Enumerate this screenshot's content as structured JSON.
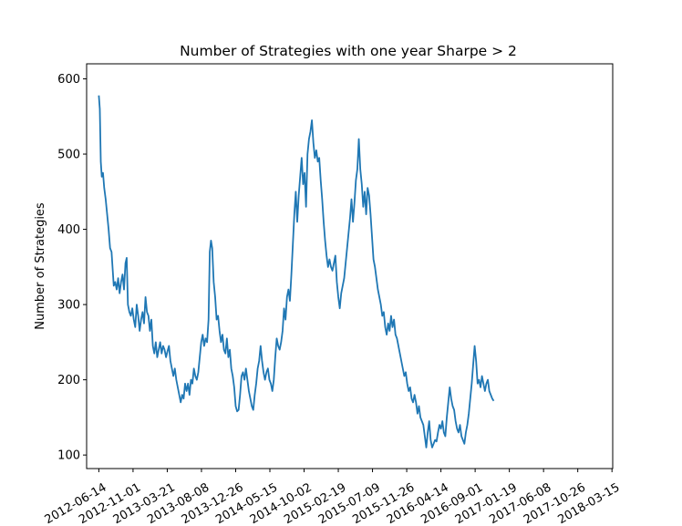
{
  "chart_data": {
    "type": "line",
    "title": "Number of Strategies with one year Sharpe > 2",
    "xlabel": "",
    "ylabel": "Number of Strategies",
    "x_ticks": [
      "2012-06-14",
      "2012-11-01",
      "2013-03-21",
      "2013-08-08",
      "2013-12-26",
      "2014-05-15",
      "2014-10-02",
      "2015-02-19",
      "2015-07-09",
      "2015-11-26",
      "2016-04-14",
      "2016-09-01",
      "2017-01-19",
      "2017-06-08",
      "2017-10-26",
      "2018-03-15"
    ],
    "y_ticks": [
      100,
      200,
      300,
      400,
      500,
      600
    ],
    "ylim": [
      82,
      620
    ],
    "xlim": [
      "2012-04-25",
      "2018-03-18"
    ],
    "grid": false,
    "line_color": "#1f77b4",
    "series": [
      {
        "points": [
          [
            "2012-06-14",
            578
          ],
          [
            "2012-06-18",
            560
          ],
          [
            "2012-06-22",
            490
          ],
          [
            "2012-06-26",
            470
          ],
          [
            "2012-07-01",
            475
          ],
          [
            "2012-07-06",
            455
          ],
          [
            "2012-07-12",
            440
          ],
          [
            "2012-07-18",
            420
          ],
          [
            "2012-07-24",
            400
          ],
          [
            "2012-07-30",
            375
          ],
          [
            "2012-08-05",
            370
          ],
          [
            "2012-08-10",
            345
          ],
          [
            "2012-08-14",
            325
          ],
          [
            "2012-08-20",
            330
          ],
          [
            "2012-08-26",
            320
          ],
          [
            "2012-09-01",
            335
          ],
          [
            "2012-09-07",
            315
          ],
          [
            "2012-09-13",
            330
          ],
          [
            "2012-09-19",
            340
          ],
          [
            "2012-09-25",
            320
          ],
          [
            "2012-10-01",
            355
          ],
          [
            "2012-10-06",
            362
          ],
          [
            "2012-10-11",
            300
          ],
          [
            "2012-10-17",
            290
          ],
          [
            "2012-10-23",
            285
          ],
          [
            "2012-10-29",
            295
          ],
          [
            "2012-11-04",
            280
          ],
          [
            "2012-11-10",
            270
          ],
          [
            "2012-11-16",
            300
          ],
          [
            "2012-11-22",
            285
          ],
          [
            "2012-11-28",
            265
          ],
          [
            "2012-12-04",
            280
          ],
          [
            "2012-12-10",
            290
          ],
          [
            "2012-12-16",
            275
          ],
          [
            "2012-12-22",
            310
          ],
          [
            "2012-12-28",
            290
          ],
          [
            "2013-01-03",
            285
          ],
          [
            "2013-01-09",
            265
          ],
          [
            "2013-01-15",
            280
          ],
          [
            "2013-01-21",
            245
          ],
          [
            "2013-01-27",
            235
          ],
          [
            "2013-02-02",
            250
          ],
          [
            "2013-02-08",
            230
          ],
          [
            "2013-02-14",
            240
          ],
          [
            "2013-02-20",
            250
          ],
          [
            "2013-02-26",
            235
          ],
          [
            "2013-03-04",
            245
          ],
          [
            "2013-03-10",
            240
          ],
          [
            "2013-03-16",
            230
          ],
          [
            "2013-03-22",
            238
          ],
          [
            "2013-03-28",
            245
          ],
          [
            "2013-04-03",
            225
          ],
          [
            "2013-04-09",
            215
          ],
          [
            "2013-04-15",
            205
          ],
          [
            "2013-04-21",
            215
          ],
          [
            "2013-04-27",
            200
          ],
          [
            "2013-05-03",
            190
          ],
          [
            "2013-05-09",
            180
          ],
          [
            "2013-05-15",
            170
          ],
          [
            "2013-05-21",
            180
          ],
          [
            "2013-05-27",
            175
          ],
          [
            "2013-06-02",
            195
          ],
          [
            "2013-06-08",
            185
          ],
          [
            "2013-06-14",
            195
          ],
          [
            "2013-06-20",
            180
          ],
          [
            "2013-06-26",
            200
          ],
          [
            "2013-07-02",
            195
          ],
          [
            "2013-07-08",
            215
          ],
          [
            "2013-07-14",
            205
          ],
          [
            "2013-07-20",
            200
          ],
          [
            "2013-07-26",
            210
          ],
          [
            "2013-08-01",
            230
          ],
          [
            "2013-08-07",
            250
          ],
          [
            "2013-08-13",
            260
          ],
          [
            "2013-08-19",
            245
          ],
          [
            "2013-08-25",
            255
          ],
          [
            "2013-08-31",
            250
          ],
          [
            "2013-09-06",
            280
          ],
          [
            "2013-09-11",
            370
          ],
          [
            "2013-09-16",
            385
          ],
          [
            "2013-09-21",
            375
          ],
          [
            "2013-09-27",
            330
          ],
          [
            "2013-10-03",
            310
          ],
          [
            "2013-10-09",
            280
          ],
          [
            "2013-10-15",
            285
          ],
          [
            "2013-10-21",
            265
          ],
          [
            "2013-10-27",
            250
          ],
          [
            "2013-11-02",
            260
          ],
          [
            "2013-11-08",
            240
          ],
          [
            "2013-11-14",
            235
          ],
          [
            "2013-11-20",
            255
          ],
          [
            "2013-11-26",
            230
          ],
          [
            "2013-12-02",
            240
          ],
          [
            "2013-12-08",
            215
          ],
          [
            "2013-12-14",
            205
          ],
          [
            "2013-12-20",
            190
          ],
          [
            "2013-12-26",
            165
          ],
          [
            "2014-01-01",
            158
          ],
          [
            "2014-01-07",
            160
          ],
          [
            "2014-01-13",
            180
          ],
          [
            "2014-01-19",
            205
          ],
          [
            "2014-01-25",
            210
          ],
          [
            "2014-01-31",
            200
          ],
          [
            "2014-02-06",
            215
          ],
          [
            "2014-02-12",
            200
          ],
          [
            "2014-02-18",
            185
          ],
          [
            "2014-02-24",
            175
          ],
          [
            "2014-03-02",
            165
          ],
          [
            "2014-03-08",
            160
          ],
          [
            "2014-03-14",
            180
          ],
          [
            "2014-03-20",
            195
          ],
          [
            "2014-03-26",
            215
          ],
          [
            "2014-04-01",
            225
          ],
          [
            "2014-04-07",
            245
          ],
          [
            "2014-04-13",
            225
          ],
          [
            "2014-04-19",
            210
          ],
          [
            "2014-04-25",
            200
          ],
          [
            "2014-05-01",
            210
          ],
          [
            "2014-05-07",
            215
          ],
          [
            "2014-05-13",
            200
          ],
          [
            "2014-05-19",
            195
          ],
          [
            "2014-05-25",
            185
          ],
          [
            "2014-05-31",
            200
          ],
          [
            "2014-06-06",
            230
          ],
          [
            "2014-06-12",
            255
          ],
          [
            "2014-06-18",
            245
          ],
          [
            "2014-06-24",
            240
          ],
          [
            "2014-06-30",
            250
          ],
          [
            "2014-07-06",
            265
          ],
          [
            "2014-07-12",
            295
          ],
          [
            "2014-07-18",
            280
          ],
          [
            "2014-07-24",
            310
          ],
          [
            "2014-07-30",
            320
          ],
          [
            "2014-08-05",
            305
          ],
          [
            "2014-08-11",
            340
          ],
          [
            "2014-08-17",
            380
          ],
          [
            "2014-08-23",
            420
          ],
          [
            "2014-08-29",
            450
          ],
          [
            "2014-09-04",
            410
          ],
          [
            "2014-09-10",
            445
          ],
          [
            "2014-09-16",
            470
          ],
          [
            "2014-09-22",
            495
          ],
          [
            "2014-09-28",
            460
          ],
          [
            "2014-10-04",
            475
          ],
          [
            "2014-10-10",
            430
          ],
          [
            "2014-10-16",
            500
          ],
          [
            "2014-10-22",
            520
          ],
          [
            "2014-10-28",
            530
          ],
          [
            "2014-11-03",
            545
          ],
          [
            "2014-11-09",
            515
          ],
          [
            "2014-11-15",
            495
          ],
          [
            "2014-11-21",
            505
          ],
          [
            "2014-11-27",
            490
          ],
          [
            "2014-12-03",
            495
          ],
          [
            "2014-12-09",
            465
          ],
          [
            "2014-12-15",
            440
          ],
          [
            "2014-12-21",
            410
          ],
          [
            "2014-12-27",
            385
          ],
          [
            "2015-01-02",
            365
          ],
          [
            "2015-01-08",
            350
          ],
          [
            "2015-01-14",
            360
          ],
          [
            "2015-01-20",
            350
          ],
          [
            "2015-01-26",
            345
          ],
          [
            "2015-02-01",
            355
          ],
          [
            "2015-02-07",
            365
          ],
          [
            "2015-02-13",
            330
          ],
          [
            "2015-02-19",
            310
          ],
          [
            "2015-02-25",
            295
          ],
          [
            "2015-03-03",
            315
          ],
          [
            "2015-03-09",
            325
          ],
          [
            "2015-03-15",
            335
          ],
          [
            "2015-03-21",
            355
          ],
          [
            "2015-03-27",
            375
          ],
          [
            "2015-04-02",
            395
          ],
          [
            "2015-04-08",
            415
          ],
          [
            "2015-04-14",
            440
          ],
          [
            "2015-04-20",
            410
          ],
          [
            "2015-04-26",
            435
          ],
          [
            "2015-05-02",
            465
          ],
          [
            "2015-05-08",
            480
          ],
          [
            "2015-05-14",
            520
          ],
          [
            "2015-05-20",
            480
          ],
          [
            "2015-05-26",
            460
          ],
          [
            "2015-06-01",
            430
          ],
          [
            "2015-06-07",
            450
          ],
          [
            "2015-06-13",
            420
          ],
          [
            "2015-06-19",
            455
          ],
          [
            "2015-06-25",
            445
          ],
          [
            "2015-07-01",
            420
          ],
          [
            "2015-07-07",
            390
          ],
          [
            "2015-07-13",
            360
          ],
          [
            "2015-07-19",
            350
          ],
          [
            "2015-07-25",
            335
          ],
          [
            "2015-07-31",
            320
          ],
          [
            "2015-08-06",
            310
          ],
          [
            "2015-08-12",
            300
          ],
          [
            "2015-08-18",
            285
          ],
          [
            "2015-08-24",
            290
          ],
          [
            "2015-08-30",
            270
          ],
          [
            "2015-09-05",
            260
          ],
          [
            "2015-09-11",
            275
          ],
          [
            "2015-09-17",
            265
          ],
          [
            "2015-09-23",
            285
          ],
          [
            "2015-09-29",
            270
          ],
          [
            "2015-10-05",
            280
          ],
          [
            "2015-10-11",
            260
          ],
          [
            "2015-10-17",
            255
          ],
          [
            "2015-10-23",
            245
          ],
          [
            "2015-10-29",
            235
          ],
          [
            "2015-11-04",
            225
          ],
          [
            "2015-11-10",
            215
          ],
          [
            "2015-11-16",
            205
          ],
          [
            "2015-11-22",
            210
          ],
          [
            "2015-11-28",
            195
          ],
          [
            "2015-12-04",
            185
          ],
          [
            "2015-12-10",
            190
          ],
          [
            "2015-12-16",
            175
          ],
          [
            "2015-12-22",
            170
          ],
          [
            "2015-12-28",
            180
          ],
          [
            "2016-01-03",
            170
          ],
          [
            "2016-01-09",
            155
          ],
          [
            "2016-01-15",
            165
          ],
          [
            "2016-01-21",
            150
          ],
          [
            "2016-01-27",
            145
          ],
          [
            "2016-02-02",
            140
          ],
          [
            "2016-02-08",
            125
          ],
          [
            "2016-02-14",
            110
          ],
          [
            "2016-02-20",
            130
          ],
          [
            "2016-02-26",
            145
          ],
          [
            "2016-03-03",
            120
          ],
          [
            "2016-03-09",
            110
          ],
          [
            "2016-03-15",
            115
          ],
          [
            "2016-03-21",
            120
          ],
          [
            "2016-03-27",
            118
          ],
          [
            "2016-04-02",
            130
          ],
          [
            "2016-04-08",
            140
          ],
          [
            "2016-04-14",
            135
          ],
          [
            "2016-04-20",
            145
          ],
          [
            "2016-04-26",
            130
          ],
          [
            "2016-05-02",
            125
          ],
          [
            "2016-05-08",
            150
          ],
          [
            "2016-05-14",
            170
          ],
          [
            "2016-05-20",
            190
          ],
          [
            "2016-05-26",
            175
          ],
          [
            "2016-06-01",
            165
          ],
          [
            "2016-06-07",
            160
          ],
          [
            "2016-06-13",
            145
          ],
          [
            "2016-06-19",
            135
          ],
          [
            "2016-06-25",
            130
          ],
          [
            "2016-07-01",
            140
          ],
          [
            "2016-07-07",
            125
          ],
          [
            "2016-07-13",
            120
          ],
          [
            "2016-07-19",
            115
          ],
          [
            "2016-07-25",
            130
          ],
          [
            "2016-07-31",
            140
          ],
          [
            "2016-08-06",
            155
          ],
          [
            "2016-08-12",
            175
          ],
          [
            "2016-08-18",
            195
          ],
          [
            "2016-08-24",
            220
          ],
          [
            "2016-08-30",
            245
          ],
          [
            "2016-09-05",
            225
          ],
          [
            "2016-09-11",
            195
          ],
          [
            "2016-09-17",
            200
          ],
          [
            "2016-09-23",
            190
          ],
          [
            "2016-09-29",
            205
          ],
          [
            "2016-10-05",
            195
          ],
          [
            "2016-10-11",
            185
          ],
          [
            "2016-10-17",
            195
          ],
          [
            "2016-10-23",
            200
          ],
          [
            "2016-10-29",
            185
          ],
          [
            "2016-11-04",
            180
          ],
          [
            "2016-11-10",
            175
          ],
          [
            "2016-11-16",
            172
          ]
        ]
      }
    ]
  }
}
